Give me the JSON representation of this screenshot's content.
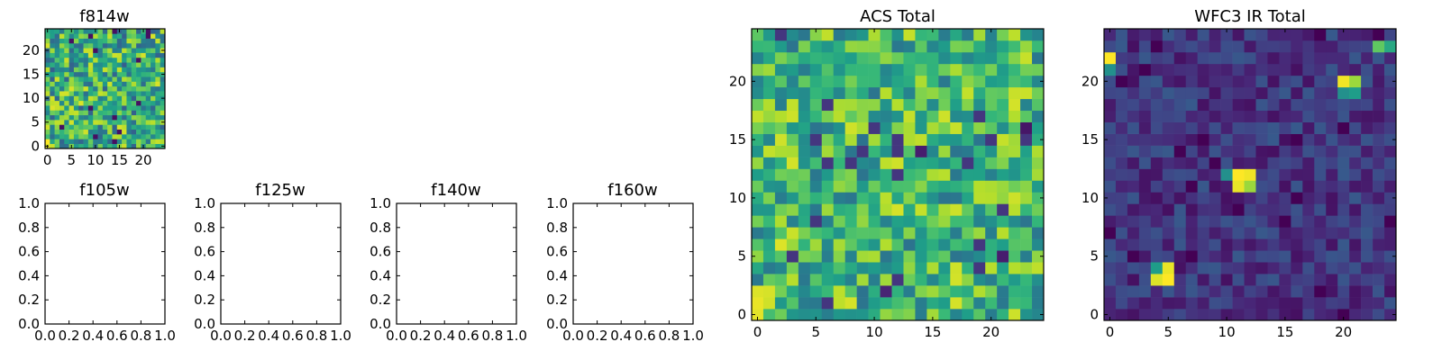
{
  "chart_data": [
    {
      "type": "heatmap",
      "title": "f814w",
      "colormap": "viridis",
      "shape": [
        25,
        25
      ],
      "xlim": [
        -0.5,
        24.5
      ],
      "ylim": [
        -0.5,
        24.5
      ],
      "xticks": [
        "0",
        "5",
        "10",
        "15",
        "20"
      ],
      "yticks": [
        "0",
        "5",
        "10",
        "15",
        "20"
      ],
      "value_range": [
        0,
        1
      ],
      "seed": 11,
      "base": 0.62,
      "noise": 0.32,
      "hotspots": [
        {
          "x": 0,
          "y": 1,
          "v": 1.0
        },
        {
          "x": 0,
          "y": 0,
          "v": 0.95
        },
        {
          "x": 1,
          "y": 0,
          "v": 0.92
        },
        {
          "x": 1,
          "y": 8,
          "v": 0.95
        },
        {
          "x": 7,
          "y": 9,
          "v": 0.95
        }
      ]
    },
    {
      "type": "heatmap",
      "title": "f105w",
      "empty": true,
      "xlim": [
        0.0,
        1.0
      ],
      "ylim": [
        0.0,
        1.0
      ],
      "xticks": [
        "0.0",
        "0.2",
        "0.4",
        "0.6",
        "0.8",
        "1.0"
      ],
      "yticks": [
        "0.0",
        "0.2",
        "0.4",
        "0.6",
        "0.8",
        "1.0"
      ]
    },
    {
      "type": "heatmap",
      "title": "f125w",
      "empty": true,
      "xlim": [
        0.0,
        1.0
      ],
      "ylim": [
        0.0,
        1.0
      ],
      "xticks": [
        "0.0",
        "0.2",
        "0.4",
        "0.6",
        "0.8",
        "1.0"
      ],
      "yticks": [
        "0.0",
        "0.2",
        "0.4",
        "0.6",
        "0.8",
        "1.0"
      ]
    },
    {
      "type": "heatmap",
      "title": "f140w",
      "empty": true,
      "xlim": [
        0.0,
        1.0
      ],
      "ylim": [
        0.0,
        1.0
      ],
      "xticks": [
        "0.0",
        "0.2",
        "0.4",
        "0.6",
        "0.8",
        "1.0"
      ],
      "yticks": [
        "0.0",
        "0.2",
        "0.4",
        "0.6",
        "0.8",
        "1.0"
      ]
    },
    {
      "type": "heatmap",
      "title": "f160w",
      "empty": true,
      "xlim": [
        0.0,
        1.0
      ],
      "ylim": [
        0.0,
        1.0
      ],
      "xticks": [
        "0.0",
        "0.2",
        "0.4",
        "0.6",
        "0.8",
        "1.0"
      ],
      "yticks": [
        "0.0",
        "0.2",
        "0.4",
        "0.6",
        "0.8",
        "1.0"
      ]
    },
    {
      "type": "heatmap",
      "title": "ACS Total",
      "colormap": "viridis",
      "shape": [
        25,
        25
      ],
      "xlim": [
        -0.5,
        24.5
      ],
      "ylim": [
        -0.5,
        24.5
      ],
      "xticks": [
        "0",
        "5",
        "10",
        "15",
        "20"
      ],
      "yticks": [
        "0",
        "5",
        "10",
        "15",
        "20"
      ],
      "value_range": [
        0,
        1
      ],
      "seed": 23,
      "base": 0.66,
      "noise": 0.28,
      "hotspots": [
        {
          "x": 0,
          "y": 0,
          "v": 0.96
        },
        {
          "x": 0,
          "y": 1,
          "v": 0.97
        },
        {
          "x": 0,
          "y": 2,
          "v": 0.95
        },
        {
          "x": 1,
          "y": 1,
          "v": 0.93
        },
        {
          "x": 1,
          "y": 2,
          "v": 0.94
        },
        {
          "x": 2,
          "y": 6,
          "v": 0.95
        },
        {
          "x": 3,
          "y": 7,
          "v": 0.92
        },
        {
          "x": 8,
          "y": 16,
          "v": 0.93
        },
        {
          "x": 11,
          "y": 2,
          "v": 0.1
        },
        {
          "x": 14,
          "y": 14,
          "v": 0.08
        },
        {
          "x": 21,
          "y": 5,
          "v": 0.08
        },
        {
          "x": 23,
          "y": 16,
          "v": 0.06
        }
      ]
    },
    {
      "type": "heatmap",
      "title": "WFC3 IR Total",
      "colormap": "viridis",
      "shape": [
        25,
        25
      ],
      "xlim": [
        -0.5,
        24.5
      ],
      "ylim": [
        -0.5,
        24.5
      ],
      "xticks": [
        "0",
        "5",
        "10",
        "15",
        "20"
      ],
      "yticks": [
        "0",
        "5",
        "10",
        "15",
        "20"
      ],
      "value_range": [
        0,
        1
      ],
      "seed": 37,
      "base": 0.16,
      "noise": 0.12,
      "hotspots": [
        {
          "x": 0,
          "y": 22,
          "v": 1.0
        },
        {
          "x": 0,
          "y": 21,
          "v": 0.5
        },
        {
          "x": 4,
          "y": 4,
          "v": 0.55
        },
        {
          "x": 5,
          "y": 4,
          "v": 0.97
        },
        {
          "x": 4,
          "y": 3,
          "v": 0.95
        },
        {
          "x": 5,
          "y": 3,
          "v": 1.0
        },
        {
          "x": 10,
          "y": 12,
          "v": 0.5
        },
        {
          "x": 11,
          "y": 12,
          "v": 1.0
        },
        {
          "x": 12,
          "y": 12,
          "v": 0.98
        },
        {
          "x": 11,
          "y": 11,
          "v": 0.97
        },
        {
          "x": 12,
          "y": 11,
          "v": 0.85
        },
        {
          "x": 20,
          "y": 19,
          "v": 0.5
        },
        {
          "x": 21,
          "y": 19,
          "v": 0.55
        },
        {
          "x": 20,
          "y": 20,
          "v": 0.98
        },
        {
          "x": 21,
          "y": 20,
          "v": 0.85
        },
        {
          "x": 23,
          "y": 23,
          "v": 0.75
        },
        {
          "x": 24,
          "y": 23,
          "v": 0.6
        }
      ]
    }
  ]
}
